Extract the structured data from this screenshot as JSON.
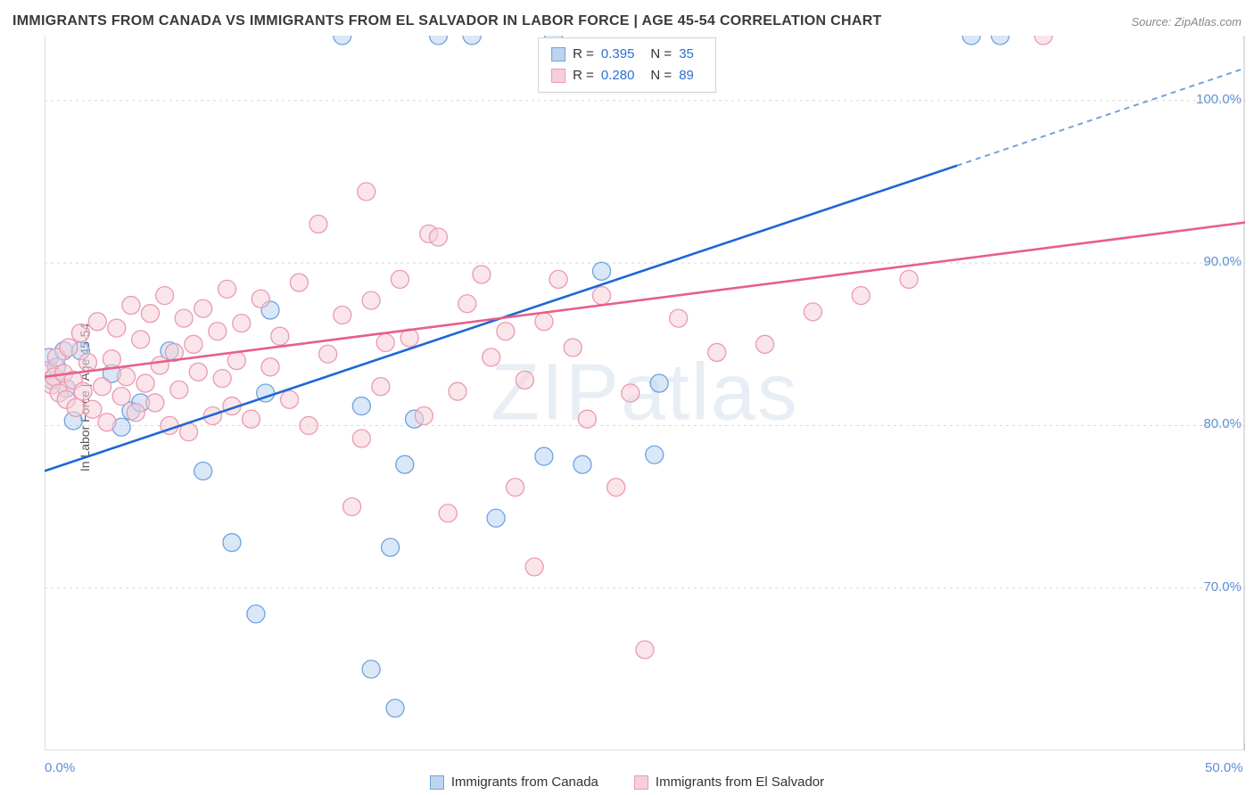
{
  "title": "IMMIGRANTS FROM CANADA VS IMMIGRANTS FROM EL SALVADOR IN LABOR FORCE | AGE 45-54 CORRELATION CHART",
  "source": "Source: ZipAtlas.com",
  "watermark": "ZIPatlas",
  "y_axis_label": "In Labor Force | Age 45-54",
  "chart": {
    "type": "scatter",
    "xlim": [
      0,
      50
    ],
    "ylim": [
      60,
      104
    ],
    "x_ticks": [
      0,
      50
    ],
    "x_tick_labels": [
      "0.0%",
      "50.0%"
    ],
    "y_ticks": [
      70,
      80,
      90,
      100
    ],
    "y_tick_labels": [
      "70.0%",
      "80.0%",
      "90.0%",
      "100.0%"
    ],
    "grid_color": "#d8d8d8",
    "axis_color": "#bfbfbf",
    "tick_label_color": "#5b8fd6",
    "background_color": "#ffffff",
    "marker_radius": 10,
    "marker_opacity": 0.55,
    "series": [
      {
        "name": "Immigrants from Canada",
        "color": "#6ea3e0",
        "fill": "#bcd4ef",
        "R": "0.395",
        "N": "35",
        "trend": {
          "x1": 0,
          "y1": 77.2,
          "x2": 38,
          "y2": 96.0,
          "dash_x2": 50,
          "dash_y2": 102.0
        },
        "points": [
          [
            0.2,
            84.2
          ],
          [
            0.3,
            82.8
          ],
          [
            0.5,
            83.6
          ],
          [
            0.8,
            84.6
          ],
          [
            0.9,
            82.3
          ],
          [
            1.2,
            80.3
          ],
          [
            1.5,
            84.6
          ],
          [
            2.8,
            83.2
          ],
          [
            3.2,
            79.9
          ],
          [
            3.6,
            80.9
          ],
          [
            4.0,
            81.4
          ],
          [
            5.2,
            84.6
          ],
          [
            6.6,
            77.2
          ],
          [
            7.8,
            72.8
          ],
          [
            8.8,
            68.4
          ],
          [
            9.2,
            82.0
          ],
          [
            9.4,
            87.1
          ],
          [
            12.4,
            104.0
          ],
          [
            13.2,
            81.2
          ],
          [
            13.6,
            65.0
          ],
          [
            14.4,
            72.5
          ],
          [
            14.6,
            62.6
          ],
          [
            15.0,
            77.6
          ],
          [
            15.4,
            80.4
          ],
          [
            16.4,
            104.0
          ],
          [
            17.8,
            104.0
          ],
          [
            18.8,
            74.3
          ],
          [
            20.8,
            78.1
          ],
          [
            21.2,
            104.0
          ],
          [
            22.4,
            77.6
          ],
          [
            23.2,
            89.5
          ],
          [
            25.4,
            78.2
          ],
          [
            25.6,
            82.6
          ],
          [
            38.6,
            104.0
          ],
          [
            39.8,
            104.0
          ]
        ]
      },
      {
        "name": "Immigrants from El Salvador",
        "color": "#e99ab1",
        "fill": "#f6cfd9",
        "R": "0.280",
        "N": "89",
        "trend": {
          "x1": 0,
          "y1": 83.0,
          "x2": 50,
          "y2": 92.5
        },
        "points": [
          [
            0.2,
            83.4
          ],
          [
            0.3,
            82.5
          ],
          [
            0.4,
            83.0
          ],
          [
            0.5,
            84.2
          ],
          [
            0.6,
            82.0
          ],
          [
            0.8,
            83.2
          ],
          [
            0.9,
            81.6
          ],
          [
            1.0,
            84.8
          ],
          [
            1.2,
            82.8
          ],
          [
            1.3,
            81.1
          ],
          [
            1.5,
            85.7
          ],
          [
            1.6,
            82.1
          ],
          [
            1.8,
            83.9
          ],
          [
            2.0,
            81.0
          ],
          [
            2.2,
            86.4
          ],
          [
            2.4,
            82.4
          ],
          [
            2.6,
            80.2
          ],
          [
            2.8,
            84.1
          ],
          [
            3.0,
            86.0
          ],
          [
            3.2,
            81.8
          ],
          [
            3.4,
            83.0
          ],
          [
            3.6,
            87.4
          ],
          [
            3.8,
            80.8
          ],
          [
            4.0,
            85.3
          ],
          [
            4.2,
            82.6
          ],
          [
            4.4,
            86.9
          ],
          [
            4.6,
            81.4
          ],
          [
            4.8,
            83.7
          ],
          [
            5.0,
            88.0
          ],
          [
            5.2,
            80.0
          ],
          [
            5.4,
            84.5
          ],
          [
            5.6,
            82.2
          ],
          [
            5.8,
            86.6
          ],
          [
            6.0,
            79.6
          ],
          [
            6.2,
            85.0
          ],
          [
            6.4,
            83.3
          ],
          [
            6.6,
            87.2
          ],
          [
            7.0,
            80.6
          ],
          [
            7.2,
            85.8
          ],
          [
            7.4,
            82.9
          ],
          [
            7.6,
            88.4
          ],
          [
            7.8,
            81.2
          ],
          [
            8.0,
            84.0
          ],
          [
            8.2,
            86.3
          ],
          [
            8.6,
            80.4
          ],
          [
            9.0,
            87.8
          ],
          [
            9.4,
            83.6
          ],
          [
            9.8,
            85.5
          ],
          [
            10.2,
            81.6
          ],
          [
            10.6,
            88.8
          ],
          [
            11.0,
            80.0
          ],
          [
            11.4,
            92.4
          ],
          [
            11.8,
            84.4
          ],
          [
            12.4,
            86.8
          ],
          [
            12.8,
            75.0
          ],
          [
            13.2,
            79.2
          ],
          [
            13.4,
            94.4
          ],
          [
            13.6,
            87.7
          ],
          [
            14.0,
            82.4
          ],
          [
            14.2,
            85.1
          ],
          [
            14.8,
            89.0
          ],
          [
            15.2,
            85.4
          ],
          [
            15.8,
            80.6
          ],
          [
            16.0,
            91.8
          ],
          [
            16.4,
            91.6
          ],
          [
            16.8,
            74.6
          ],
          [
            17.2,
            82.1
          ],
          [
            17.6,
            87.5
          ],
          [
            18.2,
            89.3
          ],
          [
            18.6,
            84.2
          ],
          [
            19.2,
            85.8
          ],
          [
            19.6,
            76.2
          ],
          [
            20.0,
            82.8
          ],
          [
            20.4,
            71.3
          ],
          [
            20.8,
            86.4
          ],
          [
            21.4,
            89.0
          ],
          [
            22.0,
            84.8
          ],
          [
            22.6,
            80.4
          ],
          [
            23.2,
            88.0
          ],
          [
            23.8,
            76.2
          ],
          [
            24.4,
            82.0
          ],
          [
            25.0,
            66.2
          ],
          [
            26.4,
            86.6
          ],
          [
            28.0,
            84.5
          ],
          [
            30.0,
            85.0
          ],
          [
            32.0,
            87.0
          ],
          [
            34.0,
            88.0
          ],
          [
            36.0,
            89.0
          ],
          [
            41.6,
            104.0
          ]
        ]
      }
    ]
  },
  "legend": {
    "series1_label": "Immigrants from Canada",
    "series2_label": "Immigrants from El Salvador"
  },
  "stats_labels": {
    "r": "R =",
    "n": "N ="
  }
}
